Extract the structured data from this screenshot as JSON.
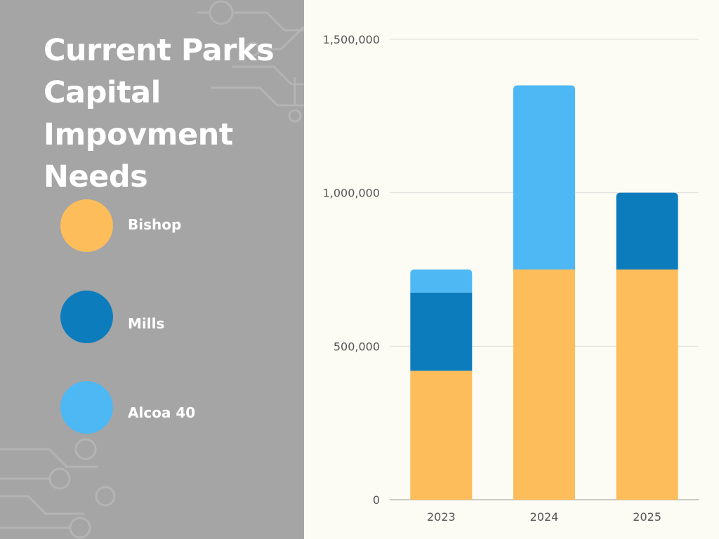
{
  "title": "Current Parks Capital Impovment Needs",
  "legend": [
    {
      "label": "Bishop",
      "color": "#fdbd5a"
    },
    {
      "label": "Mills",
      "color": "#0c7cbd"
    },
    {
      "label": "Alcoa 40",
      "color": "#4eb8f5"
    }
  ],
  "chart_data": {
    "type": "bar",
    "stacked": true,
    "categories": [
      "2023",
      "2024",
      "2025"
    ],
    "series": [
      {
        "name": "Bishop",
        "color": "#fdbd5a",
        "values": [
          420000,
          750000,
          750000
        ]
      },
      {
        "name": "Mills",
        "color": "#0c7cbd",
        "values": [
          255000,
          0,
          250000
        ]
      },
      {
        "name": "Alcoa 40",
        "color": "#4eb8f5",
        "values": [
          75000,
          600000,
          0
        ]
      }
    ],
    "ylim": [
      0,
      1500000
    ],
    "yticks": [
      0,
      500000,
      1000000,
      1500000
    ],
    "ytick_labels": [
      "0",
      "500,000",
      "1,000,000",
      "1,500,000"
    ],
    "grid": true,
    "title": "",
    "xlabel": "",
    "ylabel": ""
  }
}
